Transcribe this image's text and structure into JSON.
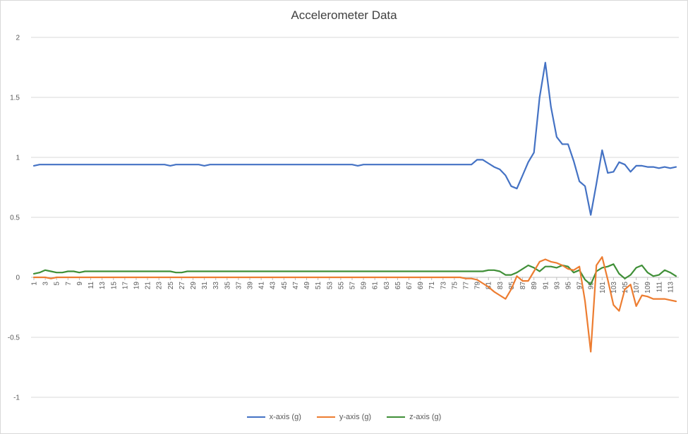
{
  "chart_data": {
    "type": "line",
    "title": "Accelerometer Data",
    "xlabel": "",
    "ylabel": "",
    "ylim": [
      -1,
      2
    ],
    "yticks": [
      "2",
      "1.5",
      "1",
      "0.5",
      "0",
      "-0.5",
      "-1"
    ],
    "x": [
      1,
      2,
      3,
      4,
      5,
      6,
      7,
      8,
      9,
      10,
      11,
      12,
      13,
      14,
      15,
      16,
      17,
      18,
      19,
      20,
      21,
      22,
      23,
      24,
      25,
      26,
      27,
      28,
      29,
      30,
      31,
      32,
      33,
      34,
      35,
      36,
      37,
      38,
      39,
      40,
      41,
      42,
      43,
      44,
      45,
      46,
      47,
      48,
      49,
      50,
      51,
      52,
      53,
      54,
      55,
      56,
      57,
      58,
      59,
      60,
      61,
      62,
      63,
      64,
      65,
      66,
      67,
      68,
      69,
      70,
      71,
      72,
      73,
      74,
      75,
      76,
      77,
      78,
      79,
      80,
      81,
      82,
      83,
      84,
      85,
      86,
      87,
      88,
      89,
      90,
      91,
      92,
      93,
      94,
      95,
      96,
      97,
      98,
      99,
      100,
      101,
      102,
      103,
      104,
      105,
      106,
      107,
      108,
      109,
      110,
      111,
      112,
      113,
      114
    ],
    "xticks": [
      "1",
      "3",
      "5",
      "7",
      "9",
      "11",
      "13",
      "15",
      "17",
      "19",
      "21",
      "23",
      "25",
      "27",
      "29",
      "31",
      "33",
      "35",
      "37",
      "39",
      "41",
      "43",
      "45",
      "47",
      "49",
      "51",
      "53",
      "55",
      "57",
      "59",
      "61",
      "63",
      "65",
      "67",
      "69",
      "71",
      "73",
      "75",
      "77",
      "79",
      "81",
      "83",
      "85",
      "87",
      "89",
      "91",
      "93",
      "95",
      "97",
      "99",
      "101",
      "103",
      "105",
      "107",
      "109",
      "111",
      "113"
    ],
    "grid": true,
    "legend_position": "bottom",
    "series": [
      {
        "name": "x-axis (g)",
        "color": "#4472c4",
        "values": [
          0.93,
          0.94,
          0.94,
          0.94,
          0.94,
          0.94,
          0.94,
          0.94,
          0.94,
          0.94,
          0.94,
          0.94,
          0.94,
          0.94,
          0.94,
          0.94,
          0.94,
          0.94,
          0.94,
          0.94,
          0.94,
          0.94,
          0.94,
          0.94,
          0.93,
          0.94,
          0.94,
          0.94,
          0.94,
          0.94,
          0.93,
          0.94,
          0.94,
          0.94,
          0.94,
          0.94,
          0.94,
          0.94,
          0.94,
          0.94,
          0.94,
          0.94,
          0.94,
          0.94,
          0.94,
          0.94,
          0.94,
          0.94,
          0.94,
          0.94,
          0.94,
          0.94,
          0.94,
          0.94,
          0.94,
          0.94,
          0.94,
          0.93,
          0.94,
          0.94,
          0.94,
          0.94,
          0.94,
          0.94,
          0.94,
          0.94,
          0.94,
          0.94,
          0.94,
          0.94,
          0.94,
          0.94,
          0.94,
          0.94,
          0.94,
          0.94,
          0.94,
          0.94,
          0.98,
          0.98,
          0.95,
          0.92,
          0.9,
          0.85,
          0.76,
          0.74,
          0.85,
          0.96,
          1.04,
          1.5,
          1.79,
          1.42,
          1.17,
          1.11,
          1.11,
          0.97,
          0.8,
          0.76,
          0.52,
          0.78,
          1.06,
          0.87,
          0.88,
          0.96,
          0.94,
          0.88,
          0.93,
          0.93,
          0.92,
          0.92,
          0.91,
          0.92,
          0.91,
          0.92
        ]
      },
      {
        "name": "y-axis (g)",
        "color": "#ed7d31",
        "values": [
          0,
          0,
          0,
          -0.01,
          0,
          0,
          0,
          0,
          0,
          0,
          0,
          0,
          0,
          0,
          0,
          0,
          0,
          0,
          0,
          0,
          0,
          0,
          0,
          0,
          0,
          0,
          0,
          0,
          0,
          0,
          0,
          0,
          0,
          0,
          0,
          0,
          0,
          0,
          0,
          0,
          0,
          0,
          0,
          0,
          0,
          0,
          0,
          0,
          0,
          0,
          0,
          0,
          0,
          0,
          0,
          0,
          0,
          0,
          0,
          0,
          0,
          0,
          0,
          0,
          0,
          0,
          0,
          0,
          0,
          0,
          0,
          0,
          0,
          0,
          0,
          0,
          -0.01,
          -0.01,
          -0.02,
          -0.05,
          -0.08,
          -0.12,
          -0.15,
          -0.18,
          -0.1,
          0.01,
          -0.03,
          -0.03,
          0.05,
          0.13,
          0.15,
          0.13,
          0.12,
          0.1,
          0.07,
          0.06,
          0.09,
          -0.2,
          -0.62,
          0.1,
          0.17,
          -0.02,
          -0.23,
          -0.28,
          -0.1,
          -0.06,
          -0.24,
          -0.15,
          -0.16,
          -0.18,
          -0.18,
          -0.18,
          -0.19,
          -0.2
        ]
      },
      {
        "name": "z-axis (g)",
        "color": "#3f8f37",
        "values": [
          0.03,
          0.04,
          0.06,
          0.05,
          0.04,
          0.04,
          0.05,
          0.05,
          0.04,
          0.05,
          0.05,
          0.05,
          0.05,
          0.05,
          0.05,
          0.05,
          0.05,
          0.05,
          0.05,
          0.05,
          0.05,
          0.05,
          0.05,
          0.05,
          0.05,
          0.04,
          0.04,
          0.05,
          0.05,
          0.05,
          0.05,
          0.05,
          0.05,
          0.05,
          0.05,
          0.05,
          0.05,
          0.05,
          0.05,
          0.05,
          0.05,
          0.05,
          0.05,
          0.05,
          0.05,
          0.05,
          0.05,
          0.05,
          0.05,
          0.05,
          0.05,
          0.05,
          0.05,
          0.05,
          0.05,
          0.05,
          0.05,
          0.05,
          0.05,
          0.05,
          0.05,
          0.05,
          0.05,
          0.05,
          0.05,
          0.05,
          0.05,
          0.05,
          0.05,
          0.05,
          0.05,
          0.05,
          0.05,
          0.05,
          0.05,
          0.05,
          0.05,
          0.05,
          0.05,
          0.05,
          0.06,
          0.06,
          0.05,
          0.02,
          0.02,
          0.04,
          0.07,
          0.1,
          0.08,
          0.05,
          0.09,
          0.09,
          0.08,
          0.1,
          0.09,
          0.04,
          0.06,
          -0.02,
          -0.06,
          0.05,
          0.08,
          0.09,
          0.11,
          0.03,
          -0.01,
          0.02,
          0.08,
          0.1,
          0.04,
          0.01,
          0.02,
          0.06,
          0.04,
          0.01
        ]
      }
    ]
  }
}
